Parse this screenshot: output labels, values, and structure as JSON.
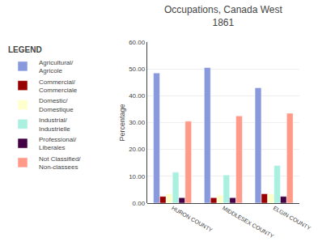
{
  "chart_data": {
    "type": "bar",
    "title": "Occupations, Canada West\n1861",
    "ylabel": "Percentage",
    "legend_title": "LEGEND",
    "categories": [
      "HURON COUNTY",
      "MIDDLESEX COUNTY",
      "ELGIN COUNTY"
    ],
    "series": [
      {
        "name": "Agricultural/\nAgricole",
        "color": "#8899dd",
        "values": [
          48.5,
          50.5,
          43.0
        ]
      },
      {
        "name": "Commercial/\nCommerciale",
        "color": "#990000",
        "values": [
          2.5,
          2.0,
          3.5
        ]
      },
      {
        "name": "Domestic/\nDomestique",
        "color": "#ffffcc",
        "values": [
          3.5,
          3.0,
          3.5
        ]
      },
      {
        "name": "Industrial/\nIndustrielle",
        "color": "#aaf0e0",
        "values": [
          11.5,
          10.5,
          14.0
        ]
      },
      {
        "name": "Professional/\nLiberales",
        "color": "#440044",
        "values": [
          2.0,
          2.0,
          2.5
        ]
      },
      {
        "name": "Not Classified/\nNon-classees",
        "color": "#ff9988",
        "values": [
          30.5,
          32.5,
          33.5
        ]
      }
    ],
    "ylim": [
      0,
      60
    ],
    "yticks": [
      {
        "value": 0,
        "label": "0.00"
      },
      {
        "value": 10,
        "label": "10.00"
      },
      {
        "value": 20,
        "label": "20.00"
      },
      {
        "value": 30,
        "label": "30.00"
      },
      {
        "value": 40,
        "label": "40.00"
      },
      {
        "value": 50,
        "label": "50.00"
      },
      {
        "value": 60,
        "label": "60.00"
      }
    ],
    "grid": true,
    "legend": "left"
  }
}
